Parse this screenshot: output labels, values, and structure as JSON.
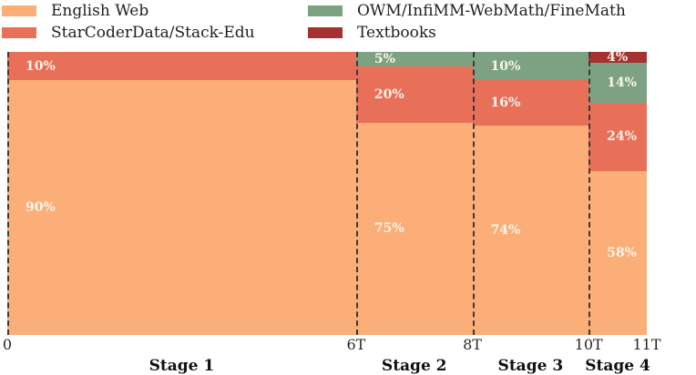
{
  "chart_data": {
    "type": "bar",
    "variant": "marimekko_stacked_percentage",
    "title": "",
    "xlabel": "",
    "ylabel": "",
    "xlim": [
      0,
      11
    ],
    "x_unit": "trillion tokens",
    "x_ticks": [
      "0",
      "6T",
      "8T",
      "10T",
      "11T"
    ],
    "x_tick_values": [
      0,
      6,
      8,
      10,
      11
    ],
    "grid": false,
    "legend_position": "top",
    "legend": [
      {
        "name": "English Web",
        "color": "#FBAE77"
      },
      {
        "name": "StarCoderData/Stack-Edu",
        "color": "#E86F58"
      },
      {
        "name": "OWM/InfiMM-WebMath/FineMath",
        "color": "#7DA283"
      },
      {
        "name": "Textbooks",
        "color": "#A53130"
      }
    ],
    "stages": [
      {
        "label": "Stage 1",
        "x_start": 0,
        "x_end": 6,
        "segments": [
          {
            "series": "StarCoderData/Stack-Edu",
            "pct": 10,
            "label": "10%"
          },
          {
            "series": "English Web",
            "pct": 90,
            "label": "90%"
          }
        ]
      },
      {
        "label": "Stage 2",
        "x_start": 6,
        "x_end": 8,
        "segments": [
          {
            "series": "OWM/InfiMM-WebMath/FineMath",
            "pct": 5,
            "label": "5%"
          },
          {
            "series": "StarCoderData/Stack-Edu",
            "pct": 20,
            "label": "20%"
          },
          {
            "series": "English Web",
            "pct": 75,
            "label": "75%"
          }
        ]
      },
      {
        "label": "Stage 3",
        "x_start": 8,
        "x_end": 10,
        "segments": [
          {
            "series": "OWM/InfiMM-WebMath/FineMath",
            "pct": 10,
            "label": "10%"
          },
          {
            "series": "StarCoderData/Stack-Edu",
            "pct": 16,
            "label": "16%"
          },
          {
            "series": "English Web",
            "pct": 74,
            "label": "74%"
          }
        ]
      },
      {
        "label": "Stage 4",
        "x_start": 10,
        "x_end": 11,
        "segments": [
          {
            "series": "Textbooks",
            "pct": 4,
            "label": "4%"
          },
          {
            "series": "OWM/InfiMM-WebMath/FineMath",
            "pct": 14,
            "label": "14%"
          },
          {
            "series": "StarCoderData/Stack-Edu",
            "pct": 24,
            "label": "24%"
          },
          {
            "series": "English Web",
            "pct": 58,
            "label": "58%"
          }
        ]
      }
    ],
    "styles": {
      "boundary_line_color": "#3a3a3a",
      "tick_text_color": "#262626",
      "percent_label_color": "#FBF6EC"
    }
  }
}
